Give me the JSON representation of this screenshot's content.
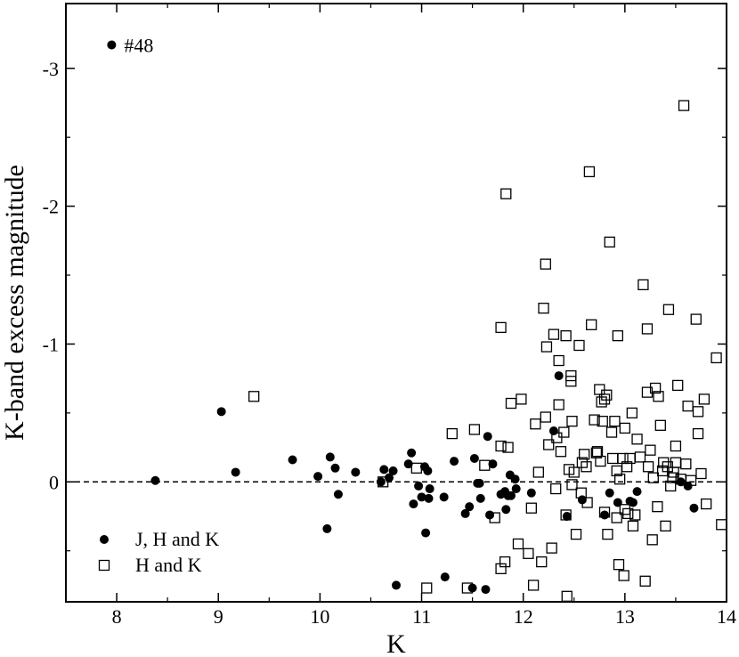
{
  "chart_data": {
    "type": "scatter",
    "xlabel": "K",
    "ylabel": "K-band excess magnitude",
    "xlim": [
      7.5,
      14
    ],
    "ylim": [
      0.87,
      -3.47
    ],
    "y_axis_inverted": true,
    "x_ticks": [
      8,
      9,
      10,
      11,
      12,
      13,
      14
    ],
    "y_ticks": [
      -3,
      -2,
      -1,
      0
    ],
    "x_tick_labels": [
      "8",
      "9",
      "10",
      "11",
      "12",
      "13",
      "14"
    ],
    "y_tick_labels": [
      "-3",
      "-2",
      "-1",
      "0"
    ],
    "grid": false,
    "reference_line": {
      "y": 0,
      "style": "dashed"
    },
    "legend": {
      "position": "bottom-left"
    },
    "annotations": [
      {
        "text": "#48",
        "x": 7.95,
        "y": -3.17
      }
    ],
    "series": [
      {
        "name": "J, H and K",
        "marker": "filled-circle",
        "color": "#000000",
        "points": [
          [
            7.95,
            -3.17
          ],
          [
            8.38,
            -0.01
          ],
          [
            9.03,
            -0.51
          ],
          [
            9.17,
            -0.07
          ],
          [
            9.73,
            -0.16
          ],
          [
            9.98,
            -0.04
          ],
          [
            10.07,
            0.34
          ],
          [
            10.1,
            -0.18
          ],
          [
            10.15,
            -0.1
          ],
          [
            10.18,
            0.09
          ],
          [
            10.35,
            -0.07
          ],
          [
            10.6,
            0.0
          ],
          [
            10.63,
            -0.09
          ],
          [
            10.68,
            -0.03
          ],
          [
            10.72,
            -0.08
          ],
          [
            10.75,
            0.75
          ],
          [
            10.87,
            -0.13
          ],
          [
            10.9,
            -0.21
          ],
          [
            10.92,
            0.16
          ],
          [
            10.97,
            0.03
          ],
          [
            11.0,
            0.11
          ],
          [
            11.03,
            -0.11
          ],
          [
            11.04,
            0.37
          ],
          [
            11.06,
            -0.08
          ],
          [
            11.07,
            0.12
          ],
          [
            11.08,
            0.05
          ],
          [
            11.22,
            0.11
          ],
          [
            11.23,
            0.69
          ],
          [
            11.32,
            -0.15
          ],
          [
            11.43,
            0.23
          ],
          [
            11.47,
            0.18
          ],
          [
            11.5,
            0.77
          ],
          [
            11.52,
            -0.17
          ],
          [
            11.55,
            0.01
          ],
          [
            11.57,
            0.01
          ],
          [
            11.58,
            0.12
          ],
          [
            11.63,
            0.78
          ],
          [
            11.65,
            -0.33
          ],
          [
            11.67,
            0.24
          ],
          [
            11.7,
            -0.13
          ],
          [
            11.78,
            0.09
          ],
          [
            11.82,
            0.07
          ],
          [
            11.83,
            0.2
          ],
          [
            11.85,
            0.1
          ],
          [
            11.87,
            -0.05
          ],
          [
            11.88,
            0.1
          ],
          [
            11.92,
            -0.02
          ],
          [
            11.93,
            0.05
          ],
          [
            12.08,
            0.08
          ],
          [
            12.3,
            -0.37
          ],
          [
            12.35,
            -0.77
          ],
          [
            12.43,
            0.25
          ],
          [
            12.58,
            0.13
          ],
          [
            12.8,
            0.24
          ],
          [
            12.85,
            0.08
          ],
          [
            12.93,
            0.15
          ],
          [
            13.05,
            0.14
          ],
          [
            13.08,
            0.15
          ],
          [
            13.12,
            0.07
          ],
          [
            13.55,
            0.0
          ],
          [
            13.62,
            0.03
          ],
          [
            13.68,
            0.19
          ]
        ]
      },
      {
        "name": "H and K",
        "marker": "open-square",
        "color": "#000000",
        "points": [
          [
            9.35,
            -0.62
          ],
          [
            10.62,
            0.0
          ],
          [
            10.95,
            -0.1
          ],
          [
            11.05,
            0.77
          ],
          [
            11.3,
            -0.35
          ],
          [
            11.45,
            0.77
          ],
          [
            11.52,
            -0.38
          ],
          [
            11.62,
            -0.12
          ],
          [
            11.72,
            0.26
          ],
          [
            11.78,
            -1.12
          ],
          [
            11.78,
            0.63
          ],
          [
            11.78,
            -0.26
          ],
          [
            11.82,
            0.58
          ],
          [
            11.83,
            -2.09
          ],
          [
            11.85,
            -0.25
          ],
          [
            11.88,
            -0.57
          ],
          [
            11.95,
            0.45
          ],
          [
            11.98,
            -0.6
          ],
          [
            12.05,
            0.52
          ],
          [
            12.08,
            0.19
          ],
          [
            12.1,
            0.75
          ],
          [
            12.12,
            -0.42
          ],
          [
            12.15,
            -0.07
          ],
          [
            12.18,
            0.58
          ],
          [
            12.2,
            -1.26
          ],
          [
            12.22,
            -1.58
          ],
          [
            12.22,
            -0.47
          ],
          [
            12.23,
            -0.98
          ],
          [
            12.25,
            -0.27
          ],
          [
            12.28,
            0.48
          ],
          [
            12.3,
            -1.07
          ],
          [
            12.32,
            0.05
          ],
          [
            12.33,
            -0.32
          ],
          [
            12.35,
            -0.88
          ],
          [
            12.35,
            -0.56
          ],
          [
            12.37,
            -0.22
          ],
          [
            12.4,
            -0.36
          ],
          [
            12.42,
            0.24
          ],
          [
            12.42,
            -1.06
          ],
          [
            12.43,
            0.83
          ],
          [
            12.45,
            -0.09
          ],
          [
            12.47,
            -0.77
          ],
          [
            12.47,
            -0.73
          ],
          [
            12.48,
            -0.44
          ],
          [
            12.48,
            0.02
          ],
          [
            12.5,
            -0.07
          ],
          [
            12.52,
            0.38
          ],
          [
            12.55,
            -0.99
          ],
          [
            12.57,
            0.08
          ],
          [
            12.58,
            -0.14
          ],
          [
            12.6,
            -0.2
          ],
          [
            12.62,
            -0.11
          ],
          [
            12.63,
            0.15
          ],
          [
            12.65,
            -2.25
          ],
          [
            12.67,
            -1.14
          ],
          [
            12.7,
            -0.45
          ],
          [
            12.72,
            -0.21
          ],
          [
            12.73,
            -0.22
          ],
          [
            12.75,
            -0.67
          ],
          [
            12.76,
            -0.15
          ],
          [
            12.77,
            -0.58
          ],
          [
            12.78,
            -0.44
          ],
          [
            12.8,
            -0.6
          ],
          [
            12.8,
            0.22
          ],
          [
            12.82,
            -0.63
          ],
          [
            12.83,
            0.38
          ],
          [
            12.85,
            -1.74
          ],
          [
            12.87,
            -0.36
          ],
          [
            12.88,
            -0.17
          ],
          [
            12.9,
            -0.44
          ],
          [
            12.92,
            0.26
          ],
          [
            12.92,
            -0.08
          ],
          [
            12.93,
            -1.06
          ],
          [
            12.94,
            0.6
          ],
          [
            12.95,
            -0.02
          ],
          [
            12.98,
            -0.17
          ],
          [
            12.99,
            0.68
          ],
          [
            13.0,
            -0.39
          ],
          [
            13.0,
            0.2
          ],
          [
            13.02,
            -0.11
          ],
          [
            13.03,
            0.23
          ],
          [
            13.05,
            -0.17
          ],
          [
            13.07,
            -0.5
          ],
          [
            13.08,
            0.32
          ],
          [
            13.1,
            0.24
          ],
          [
            13.12,
            -0.31
          ],
          [
            13.15,
            -0.18
          ],
          [
            13.18,
            -1.43
          ],
          [
            13.2,
            0.72
          ],
          [
            13.22,
            -0.65
          ],
          [
            13.22,
            -1.11
          ],
          [
            13.23,
            -0.11
          ],
          [
            13.25,
            -0.23
          ],
          [
            13.27,
            0.42
          ],
          [
            13.28,
            -0.03
          ],
          [
            13.3,
            -0.68
          ],
          [
            13.32,
            0.18
          ],
          [
            13.33,
            -0.62
          ],
          [
            13.35,
            -0.41
          ],
          [
            13.37,
            -0.08
          ],
          [
            13.38,
            -0.14
          ],
          [
            13.4,
            0.32
          ],
          [
            13.42,
            -0.11
          ],
          [
            13.43,
            -1.25
          ],
          [
            13.45,
            0.03
          ],
          [
            13.47,
            -0.03
          ],
          [
            13.48,
            -0.07
          ],
          [
            13.5,
            -0.26
          ],
          [
            13.5,
            -0.14
          ],
          [
            13.52,
            -0.7
          ],
          [
            13.55,
            -0.02
          ],
          [
            13.58,
            -2.73
          ],
          [
            13.6,
            -0.13
          ],
          [
            13.62,
            -0.55
          ],
          [
            13.65,
            -0.01
          ],
          [
            13.7,
            -1.18
          ],
          [
            13.72,
            -0.35
          ],
          [
            13.72,
            -0.51
          ],
          [
            13.75,
            -0.06
          ],
          [
            13.78,
            -0.6
          ],
          [
            13.8,
            0.16
          ],
          [
            13.9,
            -0.9
          ],
          [
            13.95,
            0.31
          ]
        ]
      }
    ]
  }
}
